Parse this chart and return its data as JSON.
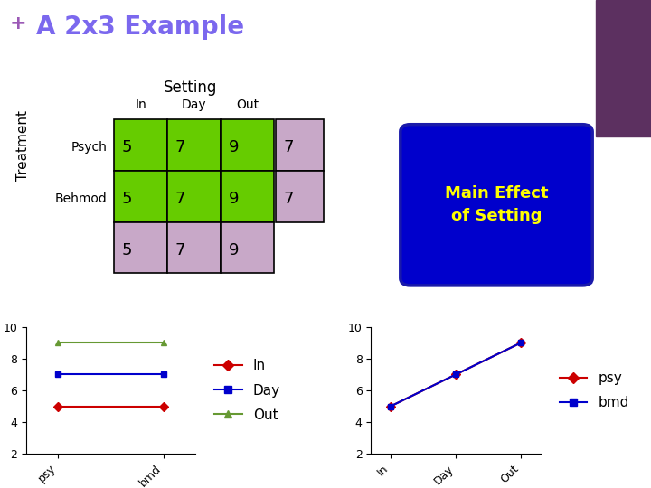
{
  "title": "A 2x3 Example",
  "title_color": "#7B68EE",
  "plus_color": "#9B59B6",
  "bg_color": "#FFFFFF",
  "table": {
    "row_labels": [
      "Psych",
      "Behmod"
    ],
    "col_labels": [
      "In",
      "Day",
      "Out"
    ],
    "data": [
      [
        5,
        7,
        9
      ],
      [
        5,
        7,
        9
      ]
    ],
    "row_means": [
      7,
      7
    ],
    "col_means": [
      5,
      7,
      9
    ],
    "cell_color_green": "#66CC00",
    "cell_color_lavender": "#C8A8C8",
    "setting_label": "Setting",
    "treatment_label": "Treatment"
  },
  "blue_box": {
    "text": "Main Effect\nof Setting",
    "text_color": "#FFFF00",
    "bg_color": "#0000CC",
    "border_color": "#000080"
  },
  "purple_rect": {
    "color": "#5C3060"
  },
  "left_plot": {
    "xlabel_vals": [
      "psy",
      "bmd"
    ],
    "series": {
      "In": {
        "psy": 5,
        "bmd": 5,
        "color": "#CC0000",
        "marker": "D"
      },
      "Day": {
        "psy": 7,
        "bmd": 7,
        "color": "#0000CC",
        "marker": "s"
      },
      "Out": {
        "psy": 9,
        "bmd": 9,
        "color": "#669933",
        "marker": "^"
      }
    },
    "ylim": [
      2,
      10
    ],
    "yticks": [
      2,
      4,
      6,
      8,
      10
    ]
  },
  "right_plot": {
    "xlabel_vals": [
      "In",
      "Day",
      "Out"
    ],
    "series": {
      "psy": {
        "In": 5,
        "Day": 7,
        "Out": 9,
        "color": "#CC0000",
        "marker": "D"
      },
      "bmd": {
        "In": 5,
        "Day": 7,
        "Out": 9,
        "color": "#0000CC",
        "marker": "s"
      }
    },
    "ylim": [
      2,
      10
    ],
    "yticks": [
      2,
      4,
      6,
      8,
      10
    ]
  }
}
